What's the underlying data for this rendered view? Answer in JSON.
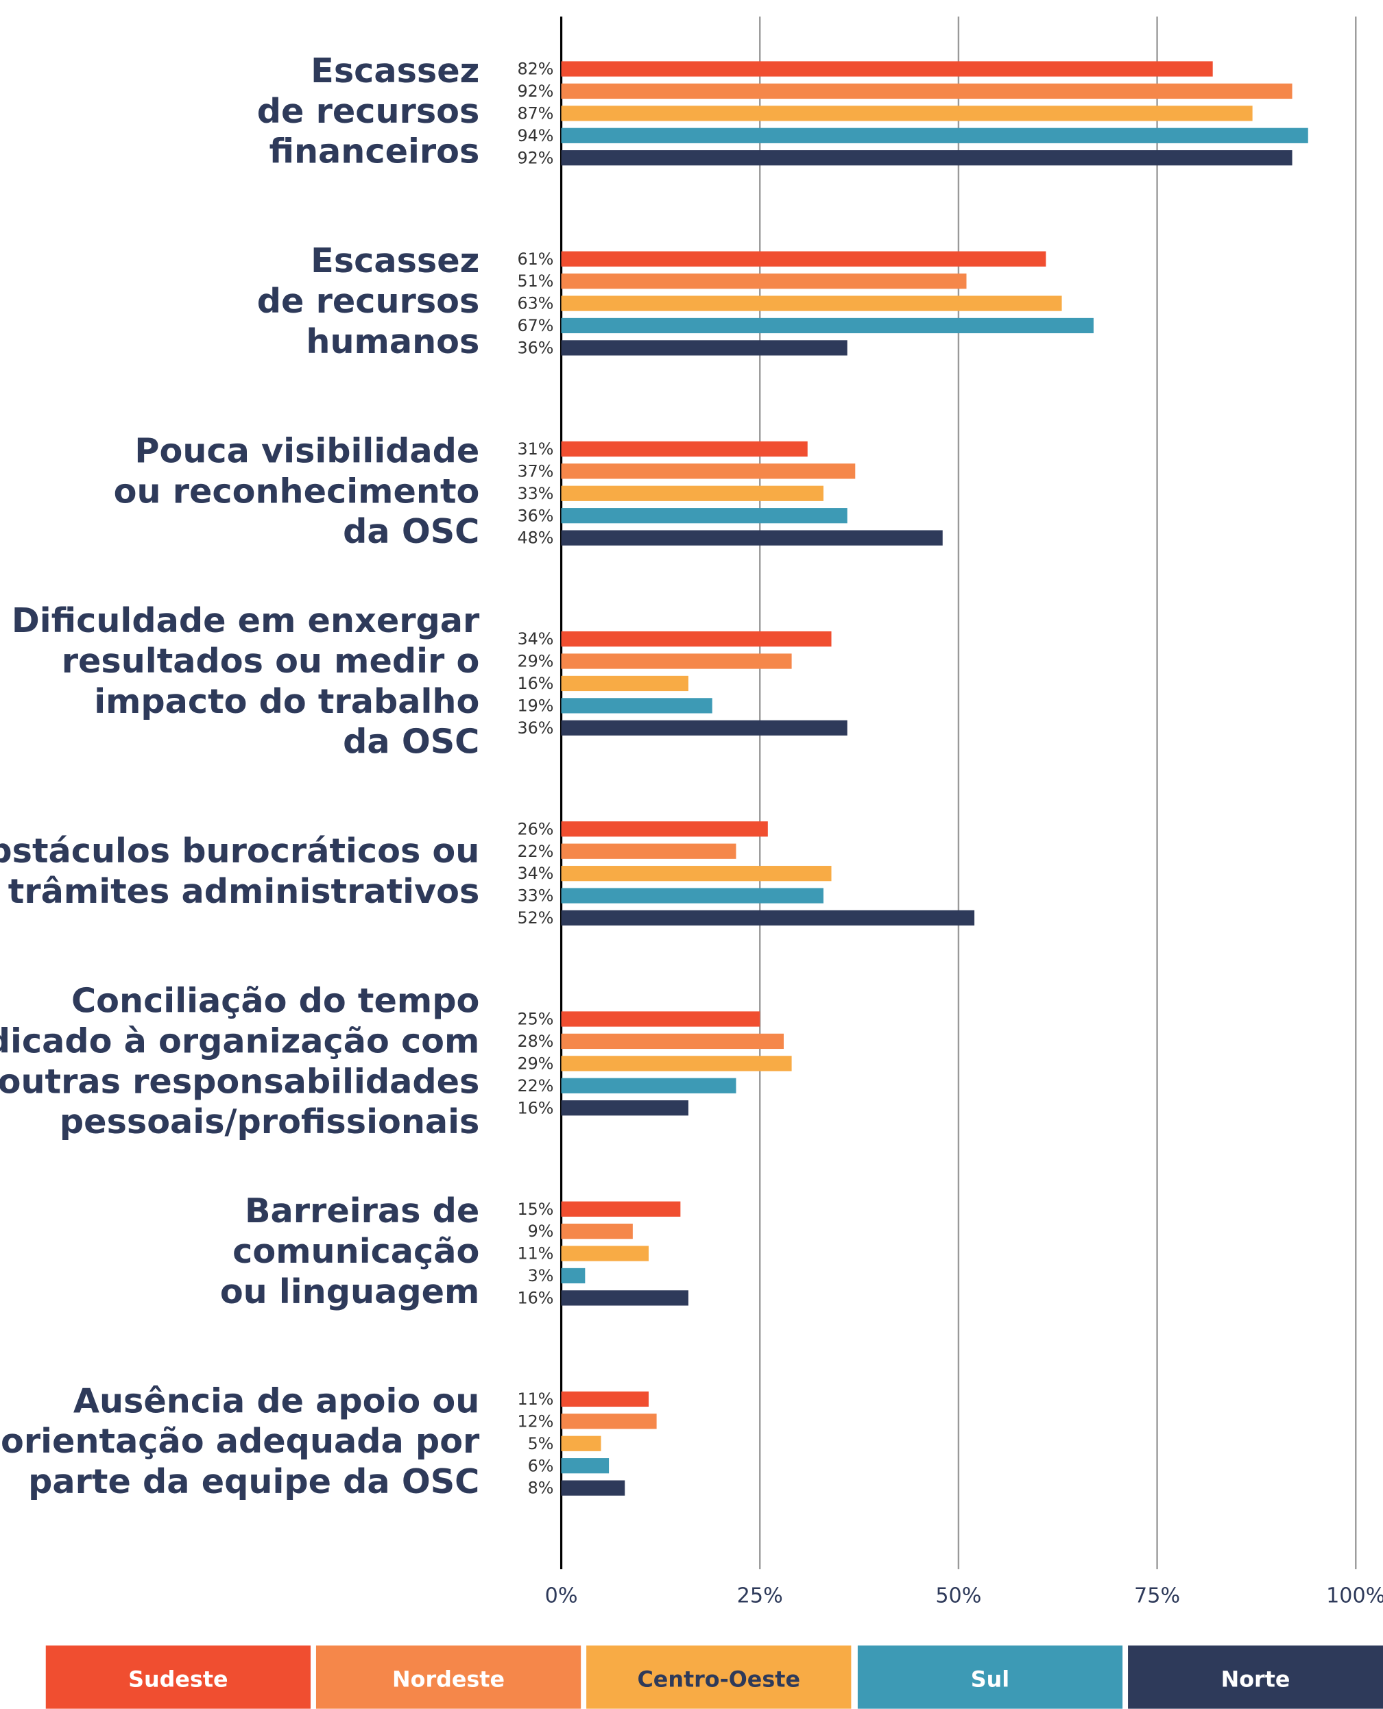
{
  "chart_data": {
    "type": "bar",
    "orientation": "horizontal",
    "categories": [
      [
        "Escassez",
        "de recursos",
        "financeiros"
      ],
      [
        "Escassez",
        "de recursos",
        "humanos"
      ],
      [
        "Pouca visibilidade",
        "ou reconhecimento",
        "da OSC"
      ],
      [
        "Dificuldade em enxergar",
        "resultados ou medir o",
        "impacto do trabalho",
        "da OSC"
      ],
      [
        "Obstáculos burocráticos ou",
        "trâmites administrativos"
      ],
      [
        "Conciliação do tempo",
        "dedicado à organização com",
        "outras responsabilidades",
        "pessoais/profissionais"
      ],
      [
        "Barreiras de",
        "comunicação",
        "ou linguagem"
      ],
      [
        "Ausência de apoio ou",
        "orientação adequada por",
        "parte da equipe da OSC"
      ]
    ],
    "series": [
      {
        "name": "Sudeste",
        "color": "#f04e30",
        "values": [
          82,
          61,
          31,
          34,
          26,
          25,
          15,
          11
        ],
        "value_labels": [
          "82%",
          "61%",
          "31%",
          "34%",
          "26%",
          "25%",
          "15%",
          "11%"
        ]
      },
      {
        "name": "Nordeste",
        "color": "#f5874a",
        "values": [
          92,
          51,
          37,
          29,
          22,
          28,
          9,
          12
        ],
        "value_labels": [
          "92%",
          "51%",
          "37%",
          "29%",
          "22%",
          "28%",
          "9%",
          "12%"
        ]
      },
      {
        "name": "Centro-Oeste",
        "color": "#f8ab45",
        "values": [
          87,
          63,
          33,
          16,
          34,
          29,
          11,
          5
        ],
        "value_labels": [
          "87%",
          "63%",
          "33%",
          "16%",
          "34%",
          "29%",
          "11%",
          "5%"
        ]
      },
      {
        "name": "Sul",
        "color": "#3d9ab5",
        "values": [
          94,
          67,
          36,
          19,
          33,
          22,
          3,
          6
        ],
        "value_labels": [
          "94%",
          "67%",
          "36%",
          "19%",
          "33%",
          "22%",
          "3%",
          "6%"
        ]
      },
      {
        "name": "Norte",
        "color": "#2e3a5a",
        "values": [
          92,
          36,
          48,
          36,
          52,
          16,
          16,
          8
        ],
        "value_labels": [
          "92%",
          "36%",
          "48%",
          "36%",
          "52%",
          "16%",
          "16%",
          "8%"
        ]
      }
    ],
    "xlim": [
      0,
      100
    ],
    "xticks": [
      {
        "value": 0,
        "label": "0%"
      },
      {
        "value": 25,
        "label": "25%"
      },
      {
        "value": 50,
        "label": "50%"
      },
      {
        "value": 75,
        "label": "75%"
      },
      {
        "value": 100,
        "label": "100%"
      }
    ],
    "grid": true,
    "legend": "bottom"
  }
}
